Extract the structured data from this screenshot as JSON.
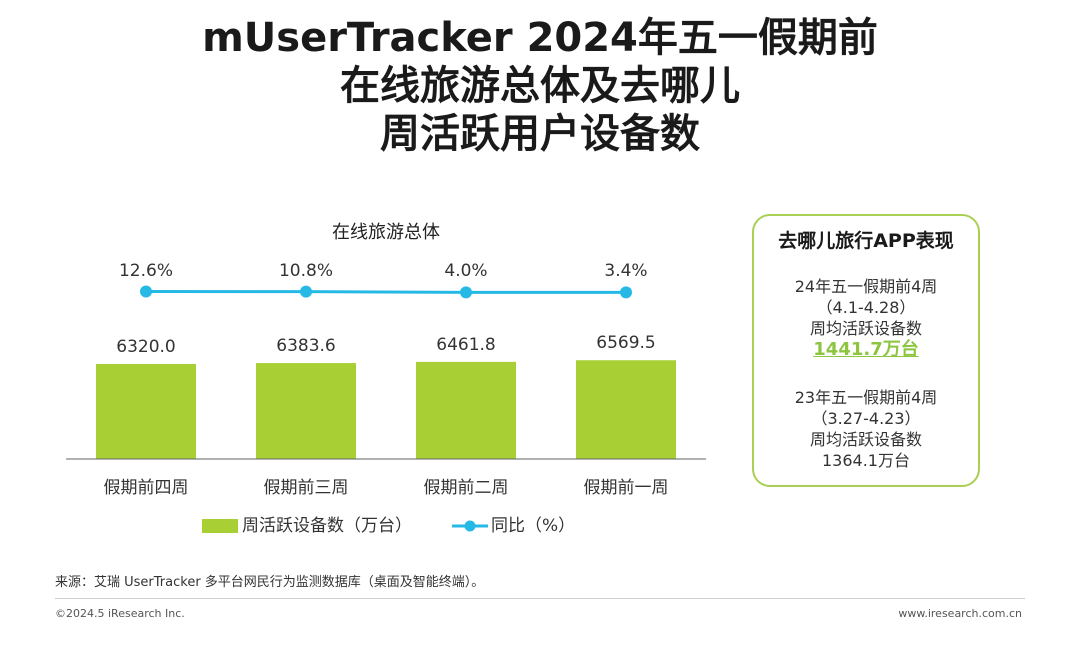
{
  "title": {
    "line1": "mUserTracker 2024年五一假期前",
    "line2": "在线旅游总体及去哪儿",
    "line3": "周活跃用户设备数"
  },
  "chart_data": {
    "type": "bar",
    "title": "在线旅游总体",
    "categories": [
      "假期前四周",
      "假期前三周",
      "假期前二周",
      "假期前一周"
    ],
    "series": [
      {
        "name": "周活跃设备数（万台）",
        "type": "bar",
        "values": [
          6320.0,
          6383.6,
          6461.8,
          6569.5
        ],
        "labels": [
          "6320.0",
          "6383.6",
          "6461.8",
          "6569.5"
        ]
      },
      {
        "name": "同比（%）",
        "type": "line",
        "values": [
          12.6,
          10.8,
          4.0,
          3.4
        ],
        "labels": [
          "12.6%",
          "10.8%",
          "4.0%",
          "3.4%"
        ]
      }
    ],
    "legend": "bottom",
    "grid": false,
    "colors": {
      "bar": "#a8cf33",
      "line": "#27b9e6"
    }
  },
  "panel": {
    "title": "去哪儿旅行APP表现",
    "block1": {
      "line1": "24年五一假期前4周",
      "line2": "（4.1-4.28）",
      "line3": "周均活跃设备数",
      "value": "1441.7万台"
    },
    "block2": {
      "line1": "23年五一假期前4周",
      "line2": "（3.27-4.23）",
      "line3": "周均活跃设备数",
      "value": "1364.1万台"
    }
  },
  "source": "来源：艾瑞 UserTracker 多平台网民行为监测数据库（桌面及智能终端）。",
  "footer": {
    "left": "©2024.5 iResearch Inc.",
    "right": "www.iresearch.com.cn"
  }
}
